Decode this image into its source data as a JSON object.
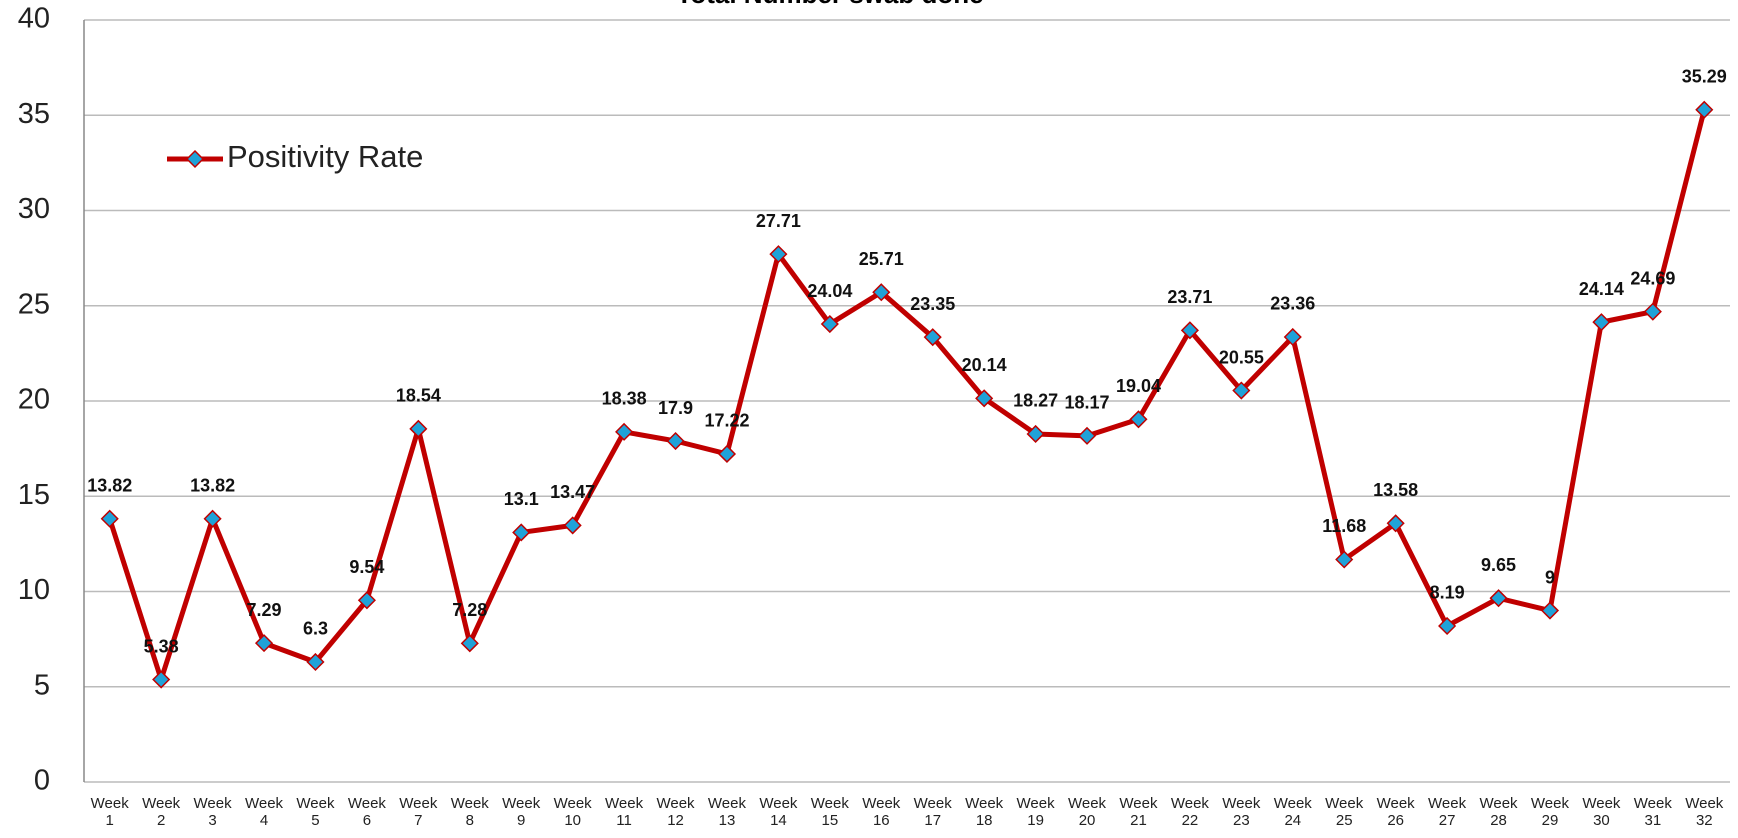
{
  "chart_data": {
    "type": "line",
    "title": "Total Number swab done",
    "categories": [
      "Week 1",
      "Week 2",
      "Week 3",
      "Week 4",
      "Week 5",
      "Week 6",
      "Week 7",
      "Week 8",
      "Week 9",
      "Week 10",
      "Week 11",
      "Week 12",
      "Week 13",
      "Week 14",
      "Week 15",
      "Week 16",
      "Week 17",
      "Week 18",
      "Week 19",
      "Week 20",
      "Week 21",
      "Week 22",
      "Week 23",
      "Week 24",
      "Week 25",
      "Week 26",
      "Week 27",
      "Week 28",
      "Week 29",
      "Week 30",
      "Week 31",
      "Week 32"
    ],
    "series": [
      {
        "name": "Positivity Rate",
        "color": "#c00000",
        "marker_color": "#1fa2d8",
        "values": [
          13.82,
          5.38,
          13.82,
          7.29,
          6.3,
          9.54,
          18.54,
          7.28,
          13.1,
          13.47,
          18.38,
          17.9,
          17.22,
          27.71,
          24.04,
          25.71,
          23.35,
          20.14,
          18.27,
          18.17,
          19.04,
          23.71,
          20.55,
          23.36,
          11.68,
          13.58,
          8.19,
          9.65,
          9,
          24.14,
          24.69,
          35.29
        ]
      }
    ],
    "ylim": [
      0,
      40
    ],
    "yticks": [
      0,
      5,
      10,
      15,
      20,
      25,
      30,
      35,
      40
    ],
    "grid": true,
    "legend": "upper left"
  }
}
